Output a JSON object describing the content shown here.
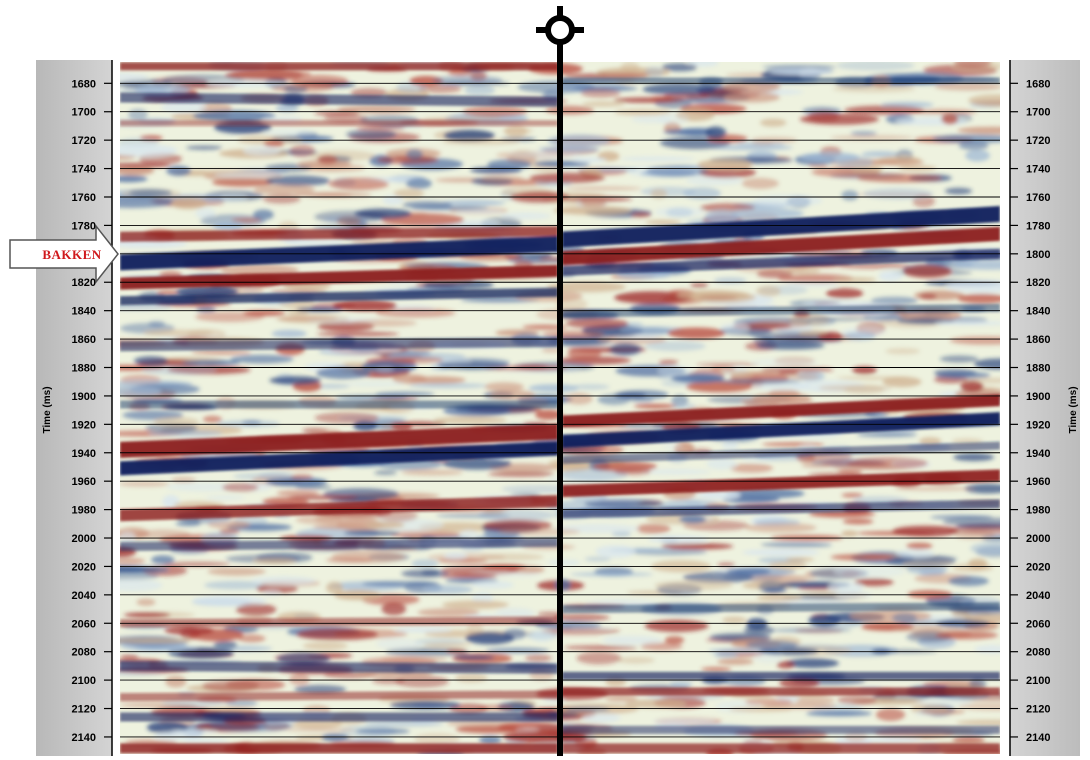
{
  "axis": {
    "title": "Time (ms)",
    "unit": "ms",
    "range_ms": [
      1665,
      2152
    ],
    "tick_step_ms": 20,
    "ticks": [
      "1680",
      "1700",
      "1720",
      "1740",
      "1760",
      "1780",
      "1800",
      "1820",
      "1840",
      "1860",
      "1880",
      "1900",
      "1920",
      "1940",
      "1960",
      "1980",
      "2000",
      "2020",
      "2040",
      "2060",
      "2080",
      "2100",
      "2120",
      "2140"
    ]
  },
  "horizon_marker": {
    "label": "BAKKEN",
    "time_ms": 1792,
    "text_color": "#d0181c"
  },
  "well": {
    "symbol": "well-location-icon",
    "color": "#000000"
  },
  "grid": {
    "timing_lines": true,
    "color": "#000000"
  },
  "colors": {
    "positive_amplitude": "#8b1a1a",
    "negative_amplitude": "#0d1f5c",
    "zero_amplitude": "#eef2df",
    "axis_panel": "#c8c8c8"
  }
}
